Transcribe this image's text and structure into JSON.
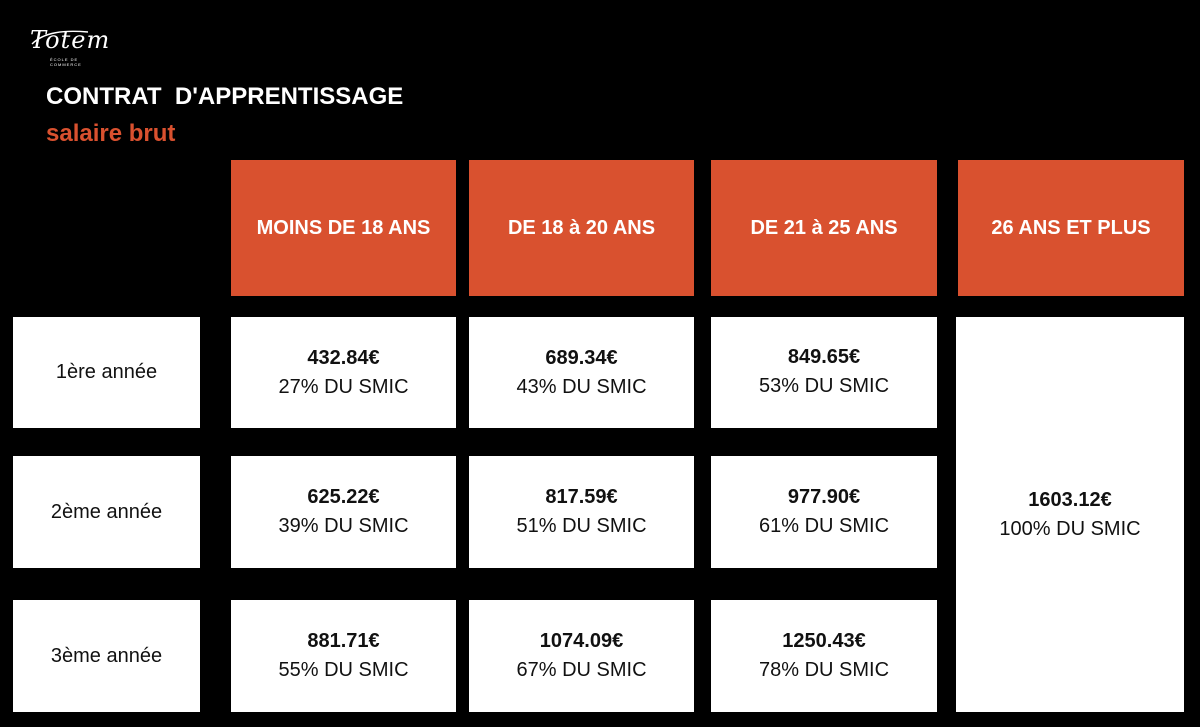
{
  "brand": {
    "logo_text": "Totem",
    "logo_subtext": "ÉCOLE DE COMMERCE"
  },
  "title": "CONTRAT  D'APPRENTISSAGE",
  "subtitle": "salaire brut",
  "colors": {
    "accent": "#d9512f",
    "background": "#000000",
    "cell": "#ffffff"
  },
  "columns": [
    "MOINS DE 18 ANS",
    "DE 18 à 20 ANS",
    "DE 21 à 25 ANS",
    "26 ANS ET PLUS"
  ],
  "rows": [
    {
      "label": "1ère année",
      "cells": [
        {
          "amount": "432.84€",
          "pct": "27% DU SMIC"
        },
        {
          "amount": "689.34€",
          "pct": "43% DU SMIC"
        },
        {
          "amount": "849.65€",
          "pct": "53% DU SMIC"
        }
      ]
    },
    {
      "label": "2ème année",
      "cells": [
        {
          "amount": "625.22€",
          "pct": "39% DU SMIC"
        },
        {
          "amount": "817.59€",
          "pct": "51% DU SMIC"
        },
        {
          "amount": "977.90€",
          "pct": "61% DU SMIC"
        }
      ]
    },
    {
      "label": "3ème année",
      "cells": [
        {
          "amount": "881.71€",
          "pct": "55% DU SMIC"
        },
        {
          "amount": "1074.09€",
          "pct": "67% DU SMIC"
        },
        {
          "amount": "1250.43€",
          "pct": "78% DU SMIC"
        }
      ]
    }
  ],
  "merged_cell": {
    "amount": "1603.12€",
    "pct": "100% DU SMIC"
  }
}
